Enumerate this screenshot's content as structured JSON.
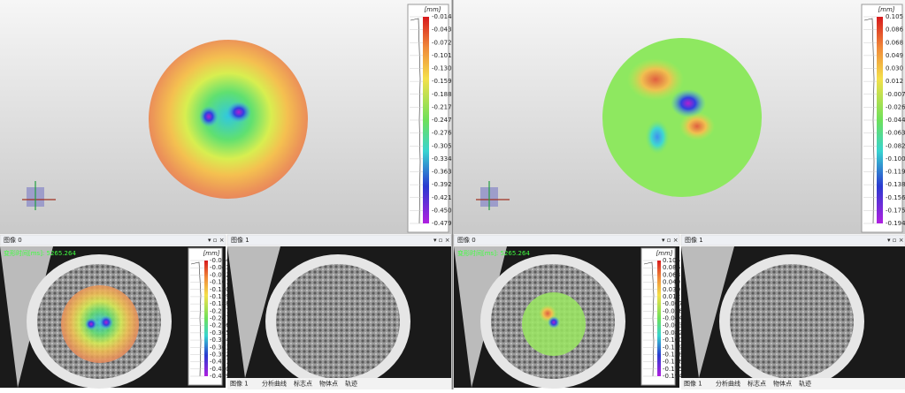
{
  "views": [
    {
      "legend": {
        "unit": "[mm]",
        "labels": [
          "-0.014",
          "-0.043",
          "-0.072",
          "-0.101",
          "-0.130",
          "-0.159",
          "-0.188",
          "-0.217",
          "-0.247",
          "-0.276",
          "-0.305",
          "-0.334",
          "-0.363",
          "-0.392",
          "-0.421",
          "-0.450",
          "-0.479"
        ]
      },
      "panels": [
        "图像 0",
        "图像 1"
      ],
      "overlay": "变形时间[ms]: 5265.264",
      "tabs": [
        "图像 1",
        "分析曲线",
        "标志点",
        "物体点",
        "轨迹"
      ]
    },
    {
      "legend": {
        "unit": "[mm]",
        "labels": [
          "0.105",
          "0.086",
          "0.068",
          "0.049",
          "0.030",
          "0.012",
          "-0.007",
          "-0.026",
          "-0.044",
          "-0.063",
          "-0.082",
          "-0.100",
          "-0.119",
          "-0.138",
          "-0.156",
          "-0.175",
          "-0.194"
        ]
      },
      "panels": [
        "图像 0",
        "图像 1"
      ],
      "overlay": "变形时间[ms]: 5265.264",
      "tabs": [
        "图像 1",
        "分析曲线",
        "标志点",
        "物体点",
        "轨迹"
      ]
    }
  ]
}
